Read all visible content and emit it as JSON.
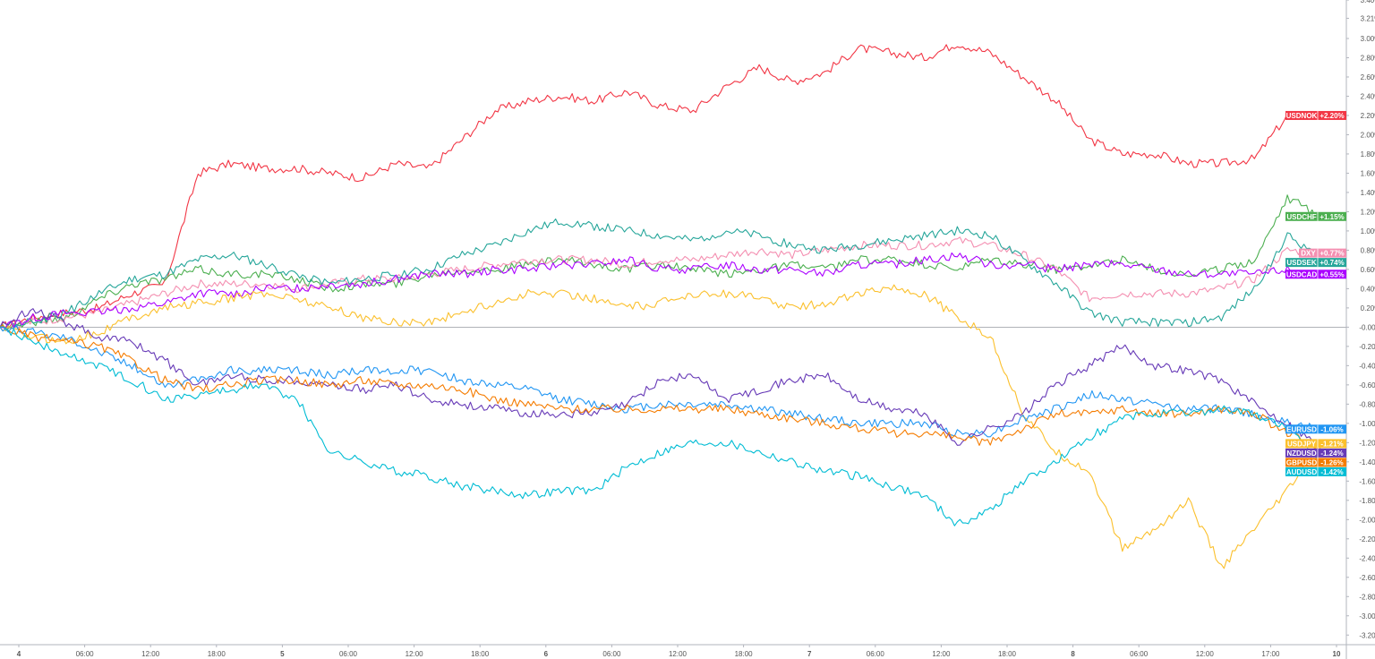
{
  "chart_data": {
    "type": "line",
    "y_unit": "%",
    "ylim": [
      -3.3,
      3.4
    ],
    "y_ticks": [
      "3.40%",
      "3.21%",
      "3.00%",
      "2.80%",
      "2.60%",
      "2.40%",
      "2.20%",
      "2.00%",
      "1.80%",
      "1.60%",
      "1.40%",
      "1.20%",
      "1.00%",
      "0.80%",
      "0.60%",
      "0.40%",
      "0.20%",
      "-0.00%",
      "-0.20%",
      "-0.40%",
      "-0.60%",
      "-0.80%",
      "-1.00%",
      "-1.20%",
      "-1.40%",
      "-1.60%",
      "-1.80%",
      "-2.00%",
      "-2.20%",
      "-2.40%",
      "-2.60%",
      "-2.80%",
      "-3.00%",
      "-3.20%"
    ],
    "x_ticks": [
      "4",
      "06:00",
      "12:00",
      "18:00",
      "5",
      "06:00",
      "12:00",
      "18:00",
      "6",
      "06:00",
      "12:00",
      "18:00",
      "7",
      "06:00",
      "12:00",
      "18:00",
      "8",
      "06:00",
      "12:00",
      "17:00",
      "10"
    ],
    "grid": false,
    "zero_line": true,
    "x": [
      0,
      3,
      6,
      9,
      12,
      15,
      18,
      21,
      24,
      27,
      30,
      33,
      36,
      39,
      42,
      45,
      48,
      51,
      54,
      57,
      60,
      63,
      66,
      69,
      72,
      75,
      78,
      81,
      84,
      87,
      90,
      93,
      96,
      99,
      102,
      105,
      108,
      111,
      114,
      117,
      120
    ],
    "series": [
      {
        "name": "USDNOK",
        "label": "USDNOK",
        "value_label": "+2.20%",
        "color": "#f23645",
        "final": 2.2,
        "values": [
          0,
          0.1,
          0.15,
          0.2,
          0.35,
          0.45,
          1.6,
          1.7,
          1.65,
          1.65,
          1.6,
          1.55,
          1.7,
          1.65,
          1.95,
          2.25,
          2.35,
          2.4,
          2.35,
          2.45,
          2.3,
          2.25,
          2.5,
          2.7,
          2.55,
          2.65,
          2.9,
          2.85,
          2.8,
          2.95,
          2.85,
          2.6,
          2.35,
          1.95,
          1.8,
          1.8,
          1.7,
          1.7,
          1.75,
          2.2,
          2.2
        ]
      },
      {
        "name": "USDCHF",
        "label": "USDCHF",
        "value_label": "+1.15%",
        "color": "#4caf50",
        "final": 1.15,
        "values": [
          0,
          0.05,
          0.1,
          0.3,
          0.45,
          0.5,
          0.6,
          0.55,
          0.55,
          0.5,
          0.4,
          0.45,
          0.45,
          0.55,
          0.6,
          0.6,
          0.65,
          0.7,
          0.65,
          0.6,
          0.65,
          0.6,
          0.55,
          0.6,
          0.65,
          0.6,
          0.7,
          0.7,
          0.65,
          0.6,
          0.7,
          0.65,
          0.6,
          0.65,
          0.7,
          0.6,
          0.55,
          0.6,
          0.7,
          1.35,
          1.15
        ]
      },
      {
        "name": "DXY",
        "label": "DXY",
        "value_label": "+0.77%",
        "color": "#f48fb1",
        "final": 0.77,
        "values": [
          0,
          0.05,
          0.1,
          0.15,
          0.25,
          0.35,
          0.45,
          0.45,
          0.45,
          0.4,
          0.45,
          0.5,
          0.5,
          0.55,
          0.6,
          0.65,
          0.7,
          0.7,
          0.7,
          0.65,
          0.7,
          0.7,
          0.75,
          0.8,
          0.75,
          0.8,
          0.85,
          0.85,
          0.85,
          0.9,
          0.85,
          0.75,
          0.6,
          0.3,
          0.35,
          0.35,
          0.35,
          0.4,
          0.5,
          0.8,
          0.77
        ]
      },
      {
        "name": "USDSEK",
        "label": "USDSEK",
        "value_label": "+0.74%",
        "color": "#26a69a",
        "final": 0.74,
        "values": [
          0,
          0.05,
          0.15,
          0.35,
          0.5,
          0.55,
          0.7,
          0.75,
          0.65,
          0.55,
          0.45,
          0.5,
          0.55,
          0.6,
          0.75,
          0.85,
          1.0,
          1.1,
          1.05,
          1.0,
          0.95,
          0.9,
          1.0,
          0.95,
          0.85,
          0.8,
          0.85,
          0.9,
          0.95,
          1.0,
          0.95,
          0.7,
          0.45,
          0.15,
          0.05,
          0.05,
          0.05,
          0.1,
          0.4,
          0.95,
          0.74
        ]
      },
      {
        "name": "USDCAD",
        "label": "USDCAD",
        "value_label": "+0.55%",
        "color": "#aa00ff",
        "final": 0.55,
        "values": [
          0,
          0.1,
          0.15,
          0.15,
          0.2,
          0.25,
          0.35,
          0.35,
          0.4,
          0.4,
          0.45,
          0.45,
          0.5,
          0.55,
          0.55,
          0.6,
          0.6,
          0.65,
          0.65,
          0.7,
          0.6,
          0.6,
          0.65,
          0.6,
          0.6,
          0.55,
          0.65,
          0.65,
          0.7,
          0.75,
          0.65,
          0.65,
          0.6,
          0.65,
          0.65,
          0.6,
          0.55,
          0.55,
          0.55,
          0.6,
          0.55
        ]
      },
      {
        "name": "USDJPY",
        "label": "USDJPY",
        "value_label": "-1.21%",
        "color": "#fbc02d",
        "final": -1.21,
        "values": [
          0,
          -0.1,
          -0.15,
          -0.05,
          0.1,
          0.2,
          0.25,
          0.3,
          0.35,
          0.3,
          0.2,
          0.1,
          0.05,
          0.05,
          0.15,
          0.25,
          0.35,
          0.35,
          0.3,
          0.2,
          0.25,
          0.35,
          0.35,
          0.3,
          0.2,
          0.25,
          0.35,
          0.4,
          0.35,
          0.1,
          -0.1,
          -0.9,
          -1.3,
          -1.5,
          -2.3,
          -2.1,
          -1.8,
          -2.5,
          -2.1,
          -1.7,
          -1.21
        ]
      },
      {
        "name": "EURUSD",
        "label": "EURUSD",
        "value_label": "-1.06%",
        "color": "#2196f3",
        "final": -1.06,
        "values": [
          0,
          -0.05,
          -0.1,
          -0.25,
          -0.4,
          -0.6,
          -0.55,
          -0.45,
          -0.45,
          -0.45,
          -0.5,
          -0.45,
          -0.45,
          -0.45,
          -0.55,
          -0.6,
          -0.65,
          -0.75,
          -0.8,
          -0.85,
          -0.8,
          -0.8,
          -0.8,
          -0.85,
          -0.9,
          -0.95,
          -1.0,
          -1.0,
          -1.0,
          -1.1,
          -1.1,
          -0.95,
          -0.85,
          -0.7,
          -0.75,
          -0.8,
          -0.85,
          -0.85,
          -0.9,
          -1.0,
          -1.06
        ]
      },
      {
        "name": "NZDUSD",
        "label": "NZDUSD",
        "value_label": "-1.24%",
        "color": "#673ab7",
        "final": -1.24,
        "values": [
          0,
          0.2,
          0.05,
          -0.1,
          -0.15,
          -0.35,
          -0.6,
          -0.5,
          -0.55,
          -0.55,
          -0.6,
          -0.65,
          -0.6,
          -0.75,
          -0.8,
          -0.85,
          -0.9,
          -0.9,
          -0.9,
          -0.8,
          -0.55,
          -0.5,
          -0.75,
          -0.65,
          -0.55,
          -0.5,
          -0.75,
          -0.85,
          -0.9,
          -1.2,
          -1.05,
          -0.9,
          -0.6,
          -0.4,
          -0.2,
          -0.4,
          -0.45,
          -0.55,
          -0.8,
          -1.0,
          -1.24
        ]
      },
      {
        "name": "GBPUSD",
        "label": "GBPUSD",
        "value_label": "-1.26%",
        "color": "#f57c00",
        "final": -1.26,
        "values": [
          0,
          -0.1,
          -0.15,
          -0.2,
          -0.35,
          -0.55,
          -0.65,
          -0.6,
          -0.55,
          -0.55,
          -0.6,
          -0.55,
          -0.6,
          -0.6,
          -0.65,
          -0.75,
          -0.8,
          -0.85,
          -0.85,
          -0.85,
          -0.85,
          -0.85,
          -0.85,
          -0.9,
          -0.95,
          -1.0,
          -1.05,
          -1.1,
          -1.1,
          -1.15,
          -1.2,
          -1.05,
          -0.9,
          -0.9,
          -0.85,
          -0.9,
          -0.9,
          -0.85,
          -0.9,
          -1.1,
          -1.26
        ]
      },
      {
        "name": "AUDUSD",
        "label": "AUDUSD",
        "value_label": "-1.42%",
        "color": "#00bcd4",
        "final": -1.42,
        "values": [
          0,
          -0.15,
          -0.3,
          -0.4,
          -0.55,
          -0.75,
          -0.7,
          -0.65,
          -0.6,
          -0.75,
          -1.3,
          -1.4,
          -1.5,
          -1.55,
          -1.65,
          -1.7,
          -1.75,
          -1.7,
          -1.7,
          -1.45,
          -1.3,
          -1.2,
          -1.2,
          -1.3,
          -1.4,
          -1.5,
          -1.55,
          -1.65,
          -1.75,
          -2.05,
          -1.9,
          -1.6,
          -1.4,
          -1.15,
          -0.95,
          -0.9,
          -0.9,
          -0.85,
          -0.9,
          -1.05,
          -1.42
        ]
      }
    ]
  }
}
